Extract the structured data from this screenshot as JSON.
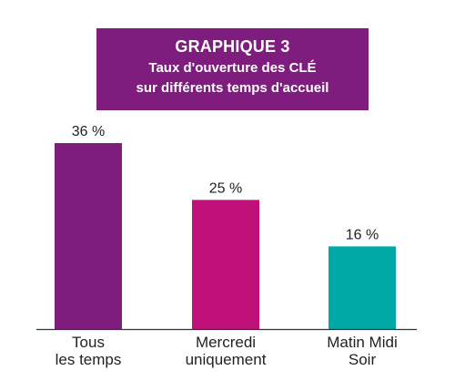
{
  "title": {
    "heading": "GRAPHIQUE 3",
    "subtitle_line1": "Taux d'ouverture des CLÉ",
    "subtitle_line2": "sur différents temps d'accueil"
  },
  "chart_data": {
    "type": "bar",
    "categories": [
      [
        "Tous",
        "les temps"
      ],
      [
        "Mercredi",
        "uniquement"
      ],
      [
        "Matin Midi",
        "Soir"
      ]
    ],
    "values": [
      36,
      25,
      16
    ],
    "value_labels": [
      "36 %",
      "25 %",
      "16 %"
    ],
    "colors": [
      "#7e1d7e",
      "#c0117a",
      "#00a9a5"
    ],
    "xlabel": "",
    "ylabel": "",
    "ylim": [
      0,
      36
    ],
    "grid": false,
    "legend": "none"
  }
}
